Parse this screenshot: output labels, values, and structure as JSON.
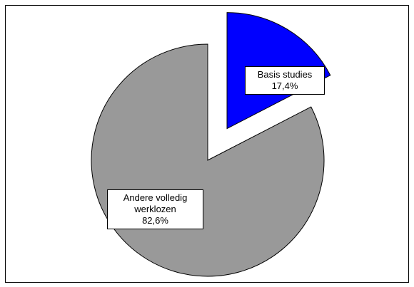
{
  "chart_data": {
    "type": "pie",
    "categories": [
      "Basis studies",
      "Andere volledig werklozen"
    ],
    "values": [
      17.4,
      82.6
    ],
    "value_labels": [
      "17,4%",
      "82,6%"
    ],
    "colors": [
      "#0000ff",
      "#999999"
    ]
  }
}
